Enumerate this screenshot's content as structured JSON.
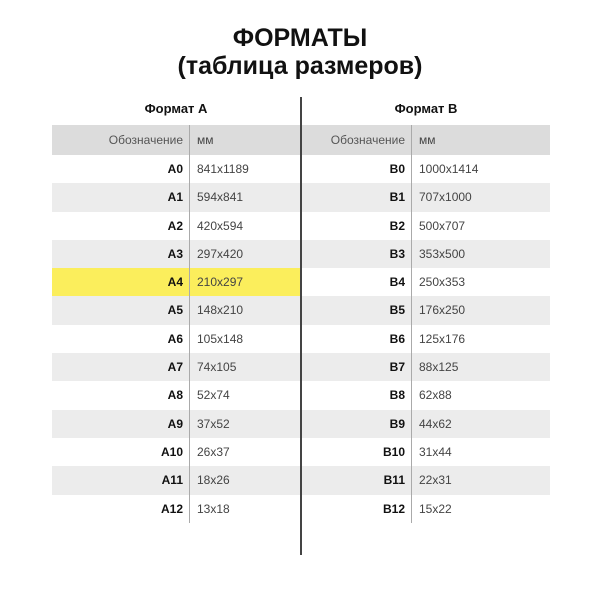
{
  "title_line1": "ФОРМАТЫ",
  "title_line2": "(таблица размеров)",
  "highlight_color": "#fbee5c",
  "highlighted": "A4",
  "tables": [
    {
      "caption": "Формат А",
      "col1": "Обозначение",
      "col2": "мм",
      "rows": [
        [
          "A0",
          "841x1189"
        ],
        [
          "A1",
          "594x841"
        ],
        [
          "A2",
          "420x594"
        ],
        [
          "A3",
          "297x420"
        ],
        [
          "A4",
          "210x297"
        ],
        [
          "A5",
          "148x210"
        ],
        [
          "A6",
          "105x148"
        ],
        [
          "A7",
          "74x105"
        ],
        [
          "A8",
          "52x74"
        ],
        [
          "A9",
          "37x52"
        ],
        [
          "A10",
          "26x37"
        ],
        [
          "A11",
          "18x26"
        ],
        [
          "A12",
          "13x18"
        ]
      ]
    },
    {
      "caption": "Формат В",
      "col1": "Обозначение",
      "col2": "мм",
      "rows": [
        [
          "B0",
          "1000x1414"
        ],
        [
          "B1",
          "707x1000"
        ],
        [
          "B2",
          "500x707"
        ],
        [
          "B3",
          "353x500"
        ],
        [
          "B4",
          "250x353"
        ],
        [
          "B5",
          "176x250"
        ],
        [
          "B6",
          "125x176"
        ],
        [
          "B7",
          "88x125"
        ],
        [
          "B8",
          "62x88"
        ],
        [
          "B9",
          "44x62"
        ],
        [
          "B10",
          "31x44"
        ],
        [
          "B11",
          "22x31"
        ],
        [
          "B12",
          "15x22"
        ]
      ]
    }
  ]
}
